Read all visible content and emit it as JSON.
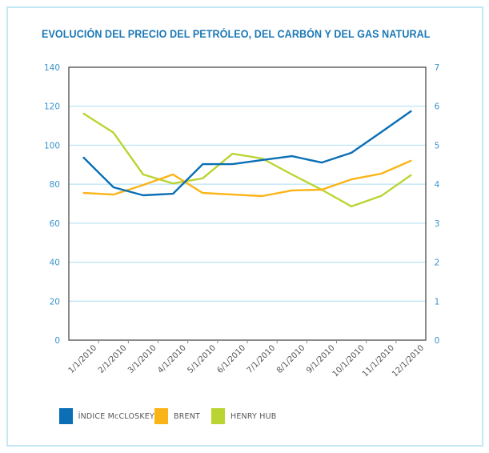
{
  "chart_data": {
    "type": "line",
    "title": "EVOLUCIÓN DEL PRECIO DEL PETRÓLEO, DEL CARBÓN Y DEL GAS NATURAL",
    "categories": [
      "1/1/2010",
      "2/1/2010",
      "3/1/2010",
      "4/1/2010",
      "5/1/2010",
      "6/1/2010",
      "7/1/2010",
      "8/1/2010",
      "9/1/2010",
      "10/1/2010",
      "11/1/2010",
      "12/1/2010"
    ],
    "xlabel": "",
    "ylabel": "",
    "y_left": {
      "range": [
        0,
        140
      ],
      "ticks": [
        "0",
        "20",
        "40",
        "60",
        "80",
        "100",
        "120",
        "140"
      ]
    },
    "y_right": {
      "range": [
        0,
        7
      ],
      "ticks": [
        "0",
        "1",
        "2",
        "3",
        "4",
        "5",
        "6",
        "7"
      ]
    },
    "grid": true,
    "legend_position": "bottom-left",
    "series": [
      {
        "name": "ÍNDICE McCLOSKEY",
        "color": "#0a6fb5",
        "axis": "left",
        "values": [
          93.6,
          78.4,
          74.3,
          75.1,
          90.3,
          90.3,
          92.4,
          94.4,
          91.1,
          96.1,
          106.7,
          117.4
        ]
      },
      {
        "name": "BRENT",
        "color": "#fbb417",
        "axis": "left",
        "values": [
          75.5,
          74.7,
          79.6,
          85.0,
          75.5,
          74.7,
          73.9,
          76.8,
          77.2,
          82.5,
          85.4,
          92.0
        ]
      },
      {
        "name": "HENRY HUB",
        "color": "#bad532",
        "axis": "right",
        "values": [
          5.81,
          5.32,
          4.25,
          4.02,
          4.15,
          4.78,
          4.66,
          4.25,
          3.86,
          3.43,
          3.7,
          4.23
        ]
      }
    ]
  }
}
